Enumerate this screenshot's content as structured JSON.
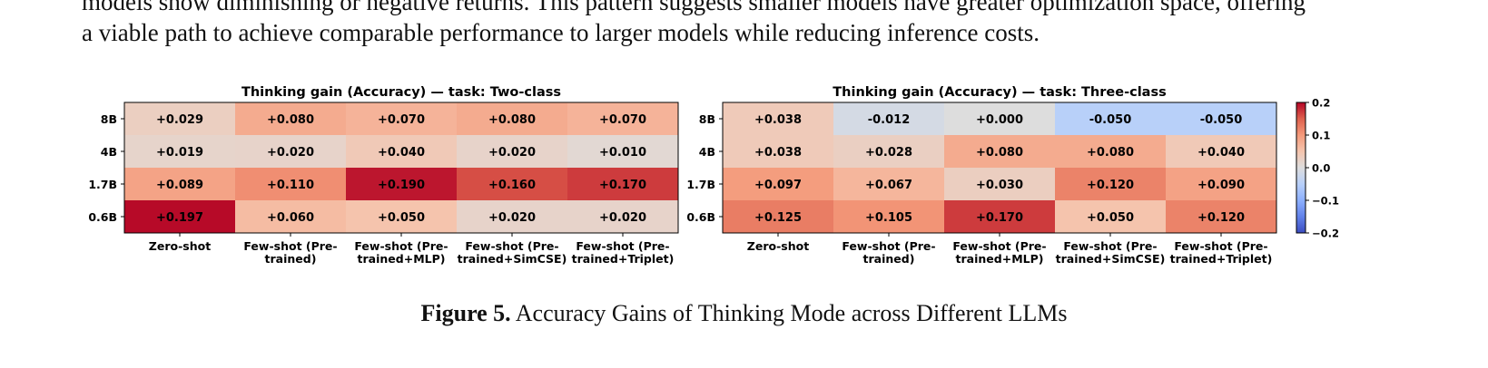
{
  "body_text": {
    "line1": "models show diminishing or negative returns. This pattern suggests smaller models have greater optimization space, offering",
    "line2": "a viable path to achieve comparable performance to larger models while reducing inference costs."
  },
  "caption": {
    "label": "Figure 5.",
    "text": "Accuracy Gains of Thinking Mode across Different LLMs"
  },
  "chart_data": [
    {
      "type": "heatmap",
      "title": "Thinking gain (Accuracy) — task: Two-class",
      "rows": [
        "8B",
        "4B",
        "1.7B",
        "0.6B"
      ],
      "columns": [
        [
          "Zero-shot"
        ],
        [
          "Few-shot (Pre-",
          "trained)"
        ],
        [
          "Few-shot (Pre-",
          "trained+MLP)"
        ],
        [
          "Few-shot (Pre-",
          "trained+SimCSE)"
        ],
        [
          "Few-shot (Pre-",
          "trained+Triplet)"
        ]
      ],
      "values": [
        [
          0.029,
          0.08,
          0.07,
          0.08,
          0.07
        ],
        [
          0.019,
          0.02,
          0.04,
          0.02,
          0.01
        ],
        [
          0.089,
          0.11,
          0.19,
          0.16,
          0.17
        ],
        [
          0.197,
          0.06,
          0.05,
          0.02,
          0.02
        ]
      ],
      "labels": [
        [
          "+0.029",
          "+0.080",
          "+0.070",
          "+0.080",
          "+0.070"
        ],
        [
          "+0.019",
          "+0.020",
          "+0.040",
          "+0.020",
          "+0.010"
        ],
        [
          "+0.089",
          "+0.110",
          "+0.190",
          "+0.160",
          "+0.170"
        ],
        [
          "+0.197",
          "+0.060",
          "+0.050",
          "+0.020",
          "+0.020"
        ]
      ],
      "colormap": "coolwarm",
      "vmin": -0.2,
      "vmax": 0.2
    },
    {
      "type": "heatmap",
      "title": "Thinking gain (Accuracy) — task: Three-class",
      "rows": [
        "8B",
        "4B",
        "1.7B",
        "0.6B"
      ],
      "columns": [
        [
          "Zero-shot"
        ],
        [
          "Few-shot (Pre-",
          "trained)"
        ],
        [
          "Few-shot (Pre-",
          "trained+MLP)"
        ],
        [
          "Few-shot (Pre-",
          "trained+SimCSE)"
        ],
        [
          "Few-shot (Pre-",
          "trained+Triplet)"
        ]
      ],
      "values": [
        [
          0.038,
          -0.012,
          0.0,
          -0.05,
          -0.05
        ],
        [
          0.038,
          0.028,
          0.08,
          0.08,
          0.04
        ],
        [
          0.097,
          0.067,
          0.03,
          0.12,
          0.09
        ],
        [
          0.125,
          0.105,
          0.17,
          0.05,
          0.12
        ]
      ],
      "labels": [
        [
          "+0.038",
          "-0.012",
          "+0.000",
          "-0.050",
          "-0.050"
        ],
        [
          "+0.038",
          "+0.028",
          "+0.080",
          "+0.080",
          "+0.040"
        ],
        [
          "+0.097",
          "+0.067",
          "+0.030",
          "+0.120",
          "+0.090"
        ],
        [
          "+0.125",
          "+0.105",
          "+0.170",
          "+0.050",
          "+0.120"
        ]
      ],
      "colormap": "coolwarm",
      "vmin": -0.2,
      "vmax": 0.2
    }
  ],
  "colorbar": {
    "ticks": [
      0.2,
      0.1,
      0.0,
      -0.1,
      -0.2
    ],
    "tick_labels": [
      "0.2",
      "0.1",
      "0.0",
      "−0.1",
      "−0.2"
    ]
  }
}
